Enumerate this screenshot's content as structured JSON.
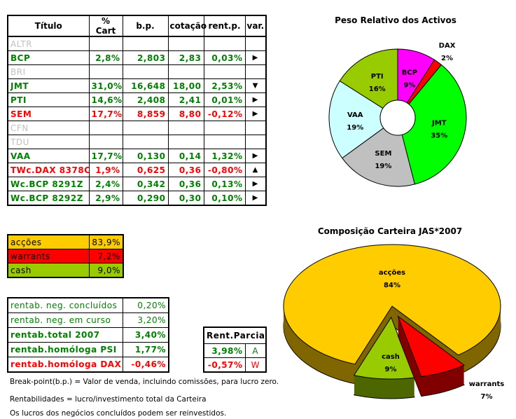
{
  "main_table": {
    "headers": [
      "Título",
      "% Cart",
      "b.p.",
      "cotação",
      "rent.p.",
      "var."
    ],
    "rows": [
      {
        "titulo": "ALTR",
        "cart": "",
        "bp": "",
        "cotacao": "",
        "rent": "",
        "var": "",
        "style": "grey"
      },
      {
        "titulo": "BCP",
        "cart": "2,8%",
        "bp": "2,803",
        "cotacao": "2,83",
        "rent": "0,03%",
        "var": "right",
        "style": "green"
      },
      {
        "titulo": "BRI",
        "cart": "",
        "bp": "",
        "cotacao": "",
        "rent": "",
        "var": "",
        "style": "grey"
      },
      {
        "titulo": "JMT",
        "cart": "31,0%",
        "bp": "16,648",
        "cotacao": "18,00",
        "rent": "2,53%",
        "var": "down",
        "style": "green"
      },
      {
        "titulo": "PTI",
        "cart": "14,6%",
        "bp": "2,408",
        "cotacao": "2,41",
        "rent": "0,01%",
        "var": "right",
        "style": "green"
      },
      {
        "titulo": "SEM",
        "cart": "17,7%",
        "bp": "8,859",
        "cotacao": "8,80",
        "rent": "-0,12%",
        "var": "right",
        "style": "red"
      },
      {
        "titulo": "CFN",
        "cart": "",
        "bp": "",
        "cotacao": "",
        "rent": "",
        "var": "",
        "style": "grey"
      },
      {
        "titulo": "TDU",
        "cart": "",
        "bp": "",
        "cotacao": "",
        "rent": "",
        "var": "",
        "style": "grey"
      },
      {
        "titulo": "VAA",
        "cart": "17,7%",
        "bp": "0,130",
        "cotacao": "0,14",
        "rent": "1,32%",
        "var": "right",
        "style": "green"
      },
      {
        "titulo": "TWc.DAX 8378C",
        "cart": "1,9%",
        "bp": "0,625",
        "cotacao": "0,36",
        "rent": "-0,80%",
        "var": "up",
        "style": "red"
      },
      {
        "titulo": "Wc.BCP 8291Z",
        "cart": "2,4%",
        "bp": "0,342",
        "cotacao": "0,36",
        "rent": "0,13%",
        "var": "right",
        "style": "green"
      },
      {
        "titulo": "Wc.BCP 8292Z",
        "cart": "2,9%",
        "bp": "0,290",
        "cotacao": "0,30",
        "rent": "0,10%",
        "var": "right",
        "style": "green"
      }
    ]
  },
  "allocation": [
    {
      "label": "acções",
      "value": "83,9%",
      "color": "#ffcc00"
    },
    {
      "label": "warrants",
      "value": "7,2%",
      "color": "#ff0000"
    },
    {
      "label": "cash",
      "value": "9,0%",
      "color": "#99cc00"
    }
  ],
  "rentab": [
    {
      "label": "rentab. neg. concluídos",
      "value": "0,20%",
      "style": "green",
      "bold": false
    },
    {
      "label": "rentab. neg. em curso",
      "value": "3,20%",
      "style": "green",
      "bold": false
    },
    {
      "label": "rentab.total 2007",
      "value": "3,40%",
      "style": "green",
      "bold": true
    },
    {
      "label": "rentab.homóloga PSI",
      "value": "1,77%",
      "style": "green",
      "bold": true
    },
    {
      "label": "rentab.homóloga DAX",
      "value": "-0,46%",
      "style": "red",
      "bold": true
    }
  ],
  "rent_parciais": {
    "header": "Rent.Parciais",
    "rows": [
      {
        "value": "3,98%",
        "code": "A",
        "style": "green"
      },
      {
        "value": "-0,57%",
        "code": "W",
        "style": "red"
      }
    ]
  },
  "notes": [
    "Break-point(b.p.) = Valor de venda, incluindo comissões, para lucro zero.",
    "Rentabilidades = lucro/investimento total da Carteira",
    "Os lucros dos negócios concluídos podem ser reinvestidos."
  ],
  "chart_data": [
    {
      "type": "pie",
      "variant": "donut",
      "title": "Peso Relativo dos Activos",
      "categories": [
        "BCP",
        "DAX",
        "JMT",
        "SEM",
        "VAA",
        "PTI"
      ],
      "values": [
        9,
        2,
        35,
        19,
        19,
        16
      ],
      "labels": [
        "9%",
        "2%",
        "35%",
        "19%",
        "19%",
        "16%"
      ],
      "colors": [
        "#ff00ff",
        "#ff0000",
        "#00ff00",
        "#c0c0c0",
        "#ccffff",
        "#99cc00"
      ]
    },
    {
      "type": "pie",
      "variant": "3d-exploded",
      "title": "Composição Carteira JAS*2007",
      "categories": [
        "acções",
        "warrants",
        "cash"
      ],
      "values": [
        84,
        7,
        9
      ],
      "labels": [
        "84%",
        "7%",
        "9%"
      ],
      "colors": [
        "#ffcc00",
        "#ff0000",
        "#99cc00"
      ],
      "side_colors": [
        "#806600",
        "#800000",
        "#4d6600"
      ]
    }
  ]
}
